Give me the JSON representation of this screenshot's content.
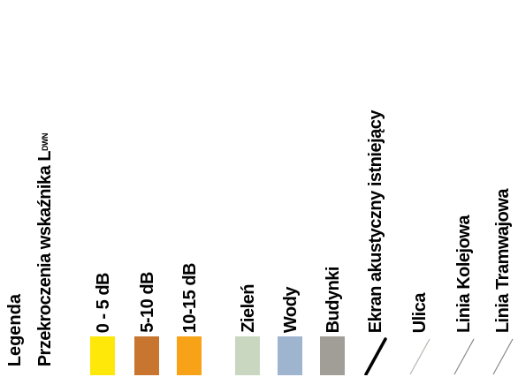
{
  "legend": {
    "heading": "Legenda",
    "exceedance_prefix": "Przekroczenia wskaźnika L",
    "exceedance_subscript": "DWN",
    "items": [
      {
        "label": "0 - 5 dB",
        "color": "#fde80a",
        "kind": "swatch"
      },
      {
        "label": "5-10 dB",
        "color": "#c8762f",
        "kind": "swatch"
      },
      {
        "label": "10-15 dB",
        "color": "#f8a218",
        "kind": "swatch"
      },
      {
        "label": "Zieleń",
        "color": "#c9d7c0",
        "kind": "swatch"
      },
      {
        "label": "Wody",
        "color": "#9fb4cf",
        "kind": "swatch"
      },
      {
        "label": "Budynki",
        "color": "#a19e98",
        "kind": "swatch"
      },
      {
        "label": "Ekran akustyczny istniejący",
        "color": "#000000",
        "kind": "thick-line"
      },
      {
        "label": "Ulica",
        "color": "#b8b4ae",
        "kind": "thin-line"
      },
      {
        "label": "Linia Kolejowa",
        "color": "#8a8884",
        "kind": "thin-line"
      },
      {
        "label": "Linia Tramwajowa",
        "color": "#8a8884",
        "kind": "thin-line"
      }
    ]
  }
}
